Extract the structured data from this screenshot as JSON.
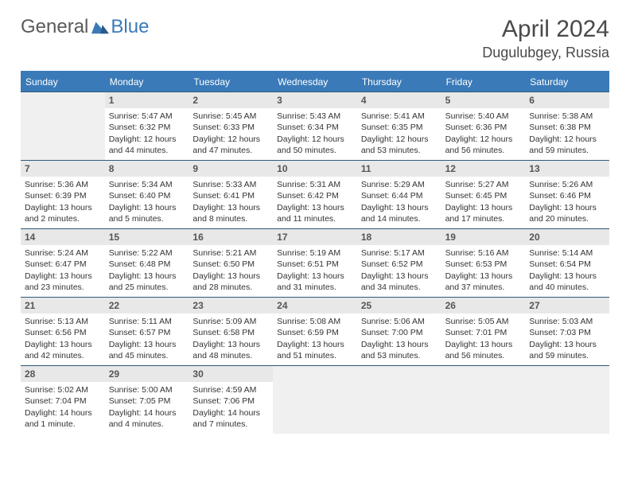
{
  "logo": {
    "word1": "General",
    "word2": "Blue"
  },
  "title": "April 2024",
  "subtitle": "Dugulubgey, Russia",
  "colors": {
    "header_bg": "#3a7ab8",
    "header_text": "#ffffff",
    "numbar_bg": "#e8e8e8",
    "empty_bg": "#f0f0f0",
    "rule": "#2d5a7a",
    "text": "#333333"
  },
  "day_names": [
    "Sunday",
    "Monday",
    "Tuesday",
    "Wednesday",
    "Thursday",
    "Friday",
    "Saturday"
  ],
  "grid": {
    "first_weekday_index": 1,
    "days_in_month": 30
  },
  "days": {
    "1": {
      "sunrise": "5:47 AM",
      "sunset": "6:32 PM",
      "daylight": "12 hours and 44 minutes."
    },
    "2": {
      "sunrise": "5:45 AM",
      "sunset": "6:33 PM",
      "daylight": "12 hours and 47 minutes."
    },
    "3": {
      "sunrise": "5:43 AM",
      "sunset": "6:34 PM",
      "daylight": "12 hours and 50 minutes."
    },
    "4": {
      "sunrise": "5:41 AM",
      "sunset": "6:35 PM",
      "daylight": "12 hours and 53 minutes."
    },
    "5": {
      "sunrise": "5:40 AM",
      "sunset": "6:36 PM",
      "daylight": "12 hours and 56 minutes."
    },
    "6": {
      "sunrise": "5:38 AM",
      "sunset": "6:38 PM",
      "daylight": "12 hours and 59 minutes."
    },
    "7": {
      "sunrise": "5:36 AM",
      "sunset": "6:39 PM",
      "daylight": "13 hours and 2 minutes."
    },
    "8": {
      "sunrise": "5:34 AM",
      "sunset": "6:40 PM",
      "daylight": "13 hours and 5 minutes."
    },
    "9": {
      "sunrise": "5:33 AM",
      "sunset": "6:41 PM",
      "daylight": "13 hours and 8 minutes."
    },
    "10": {
      "sunrise": "5:31 AM",
      "sunset": "6:42 PM",
      "daylight": "13 hours and 11 minutes."
    },
    "11": {
      "sunrise": "5:29 AM",
      "sunset": "6:44 PM",
      "daylight": "13 hours and 14 minutes."
    },
    "12": {
      "sunrise": "5:27 AM",
      "sunset": "6:45 PM",
      "daylight": "13 hours and 17 minutes."
    },
    "13": {
      "sunrise": "5:26 AM",
      "sunset": "6:46 PM",
      "daylight": "13 hours and 20 minutes."
    },
    "14": {
      "sunrise": "5:24 AM",
      "sunset": "6:47 PM",
      "daylight": "13 hours and 23 minutes."
    },
    "15": {
      "sunrise": "5:22 AM",
      "sunset": "6:48 PM",
      "daylight": "13 hours and 25 minutes."
    },
    "16": {
      "sunrise": "5:21 AM",
      "sunset": "6:50 PM",
      "daylight": "13 hours and 28 minutes."
    },
    "17": {
      "sunrise": "5:19 AM",
      "sunset": "6:51 PM",
      "daylight": "13 hours and 31 minutes."
    },
    "18": {
      "sunrise": "5:17 AM",
      "sunset": "6:52 PM",
      "daylight": "13 hours and 34 minutes."
    },
    "19": {
      "sunrise": "5:16 AM",
      "sunset": "6:53 PM",
      "daylight": "13 hours and 37 minutes."
    },
    "20": {
      "sunrise": "5:14 AM",
      "sunset": "6:54 PM",
      "daylight": "13 hours and 40 minutes."
    },
    "21": {
      "sunrise": "5:13 AM",
      "sunset": "6:56 PM",
      "daylight": "13 hours and 42 minutes."
    },
    "22": {
      "sunrise": "5:11 AM",
      "sunset": "6:57 PM",
      "daylight": "13 hours and 45 minutes."
    },
    "23": {
      "sunrise": "5:09 AM",
      "sunset": "6:58 PM",
      "daylight": "13 hours and 48 minutes."
    },
    "24": {
      "sunrise": "5:08 AM",
      "sunset": "6:59 PM",
      "daylight": "13 hours and 51 minutes."
    },
    "25": {
      "sunrise": "5:06 AM",
      "sunset": "7:00 PM",
      "daylight": "13 hours and 53 minutes."
    },
    "26": {
      "sunrise": "5:05 AM",
      "sunset": "7:01 PM",
      "daylight": "13 hours and 56 minutes."
    },
    "27": {
      "sunrise": "5:03 AM",
      "sunset": "7:03 PM",
      "daylight": "13 hours and 59 minutes."
    },
    "28": {
      "sunrise": "5:02 AM",
      "sunset": "7:04 PM",
      "daylight": "14 hours and 1 minute."
    },
    "29": {
      "sunrise": "5:00 AM",
      "sunset": "7:05 PM",
      "daylight": "14 hours and 4 minutes."
    },
    "30": {
      "sunrise": "4:59 AM",
      "sunset": "7:06 PM",
      "daylight": "14 hours and 7 minutes."
    }
  },
  "labels": {
    "sunrise": "Sunrise:",
    "sunset": "Sunset:",
    "daylight": "Daylight:"
  }
}
